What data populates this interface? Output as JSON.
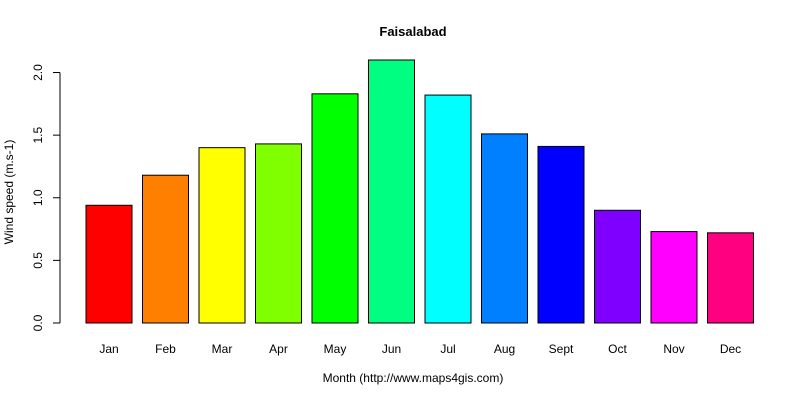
{
  "chart_data": {
    "type": "bar",
    "title": "Faisalabad",
    "xlabel": "Month (http://www.maps4gis.com)",
    "ylabel": "Wind speed (m.s-1)",
    "categories": [
      "Jan",
      "Feb",
      "Mar",
      "Apr",
      "May",
      "Jun",
      "Jul",
      "Aug",
      "Sept",
      "Oct",
      "Nov",
      "Dec"
    ],
    "values": [
      0.94,
      1.18,
      1.4,
      1.43,
      1.83,
      2.1,
      1.82,
      1.51,
      1.41,
      0.9,
      0.73,
      0.72
    ],
    "colors": [
      "#ff0000",
      "#ff8000",
      "#ffff00",
      "#80ff00",
      "#00ff00",
      "#00ff80",
      "#00ffff",
      "#0080ff",
      "#0000ff",
      "#8000ff",
      "#ff00ff",
      "#ff0080"
    ],
    "ylim": [
      0,
      2.1
    ],
    "yticks": [
      0.0,
      0.5,
      1.0,
      1.5,
      2.0
    ],
    "ytick_labels": [
      "0.0",
      "0.5",
      "1.0",
      "1.5",
      "2.0"
    ],
    "grid": false,
    "legend": "none"
  }
}
